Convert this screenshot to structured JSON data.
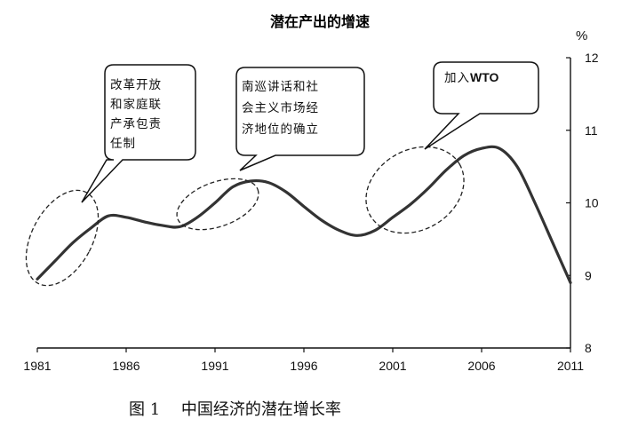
{
  "chart_data": {
    "type": "line",
    "title": "潜在产出的增速",
    "unit": "%",
    "xlabel": "",
    "ylabel": "",
    "xlim": [
      1981,
      2011
    ],
    "ylim": [
      8,
      12
    ],
    "x_ticks": [
      1981,
      1986,
      1991,
      1996,
      2001,
      2006,
      2011
    ],
    "x_tick_labels": [
      "1981",
      "1986",
      "1991",
      "1996",
      "2001",
      "2006",
      "2011"
    ],
    "y_ticks": [
      8,
      9,
      10,
      11,
      12
    ],
    "y_tick_labels": [
      "8",
      "9",
      "10",
      "11",
      "12"
    ],
    "y_axis_side": "right",
    "grid": false,
    "series": [
      {
        "x": [
          1981,
          1982,
          1983,
          1984,
          1985,
          1986,
          1987,
          1988,
          1989,
          1990,
          1991,
          1992,
          1993,
          1994,
          1995,
          1996,
          1997,
          1998,
          1999,
          2000,
          2001,
          2002,
          2003,
          2004,
          2005,
          2006,
          2007,
          2008,
          2009,
          2010,
          2011
        ],
        "y": [
          8.95,
          9.2,
          9.45,
          9.65,
          9.82,
          9.8,
          9.74,
          9.69,
          9.67,
          9.8,
          10.0,
          10.22,
          10.3,
          10.28,
          10.15,
          9.95,
          9.76,
          9.62,
          9.55,
          9.62,
          9.8,
          9.98,
          10.2,
          10.45,
          10.65,
          10.75,
          10.75,
          10.5,
          10.0,
          9.45,
          8.9
        ]
      }
    ],
    "annotations": [
      {
        "lines": [
          "改革开放",
          "和家庭联",
          "产承包责",
          "任制"
        ]
      },
      {
        "lines": [
          "南巡讲话和社",
          "会主义市场经",
          "济地位的确立"
        ]
      },
      {
        "lines": [
          "加入",
          "WTO"
        ]
      }
    ],
    "caption": "图 1　 中国经济的潜在增长率"
  }
}
